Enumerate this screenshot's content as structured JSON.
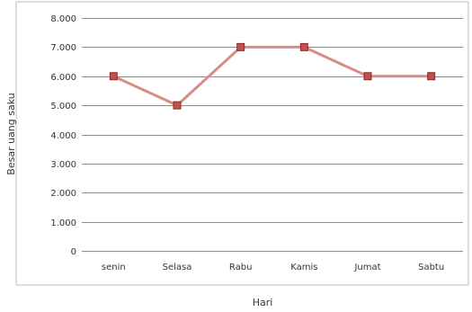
{
  "chart_data": {
    "type": "line",
    "title": "",
    "xlabel": "Hari",
    "ylabel": "Besar uang saku",
    "categories": [
      "senin",
      "Selasa",
      "Rabu",
      "Kamis",
      "Jumat",
      "Sabtu"
    ],
    "series": [
      {
        "name": "",
        "values": [
          6000,
          5000,
          7000,
          7000,
          6000,
          6000
        ]
      }
    ],
    "ylim": [
      0,
      8000
    ],
    "yticks": [
      0,
      1000,
      2000,
      3000,
      4000,
      5000,
      6000,
      7000,
      8000
    ],
    "ytick_labels": [
      "0",
      "1.000",
      "2.000",
      "3.000",
      "4.000",
      "5.000",
      "6.000",
      "7.000",
      "8.000"
    ],
    "grid": "horizontal",
    "legend": "none"
  },
  "colors": {
    "line": "#d98c86",
    "marker_fill": "#c0504d",
    "marker_edge": "#8b2b28"
  }
}
